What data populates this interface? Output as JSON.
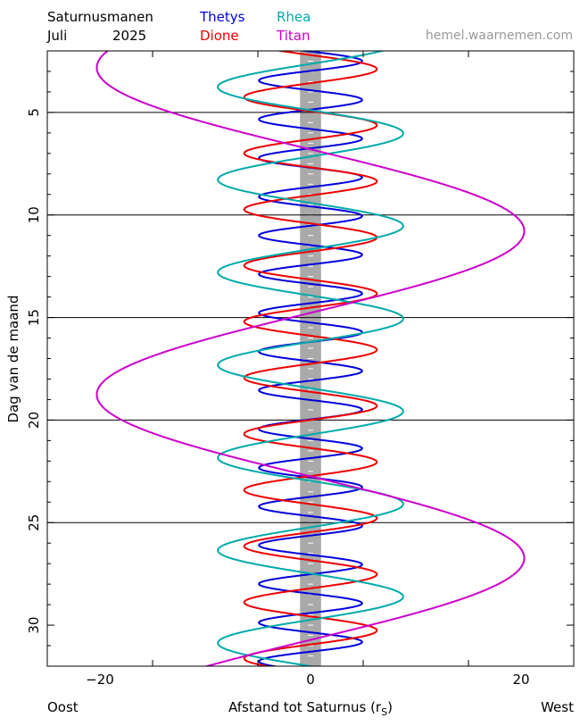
{
  "header": {
    "title": "Saturnusmanen",
    "month": "Juli",
    "year": "2025",
    "site": "hemel.waarnemen.com"
  },
  "chart_data": {
    "type": "line",
    "xlabel": "Afstand tot Saturnus",
    "xlabel_unit": "(r",
    "xlabel_sub": "S",
    "xlabel_close": ")",
    "ylabel": "Dag van de maand",
    "left_label": "Oost",
    "right_label": "West",
    "xlim": [
      -25,
      25
    ],
    "ylim": [
      2,
      32
    ],
    "y_inverted": true,
    "x_ticks": [
      -20,
      0,
      20
    ],
    "x_ticklabels": [
      "−20",
      "0",
      "20"
    ],
    "y_ticks": [
      5,
      10,
      15,
      20,
      25,
      30
    ],
    "y_ticklabels": [
      "5",
      "10",
      "15",
      "20",
      "25",
      "30"
    ],
    "grid_days": [
      5,
      10,
      15,
      20,
      25
    ],
    "planet_half_width": 1,
    "series": [
      {
        "name": "Thetys",
        "color": "#0000dd",
        "amplitude": 4.9,
        "period_days": 1.888,
        "phase_day": 2.03
      },
      {
        "name": "Dione",
        "color": "#ee0000",
        "amplitude": 6.3,
        "period_days": 2.737,
        "phase_day": 4.94
      },
      {
        "name": "Rhea",
        "color": "#00aaaa",
        "amplitude": 8.8,
        "period_days": 4.518,
        "phase_day": 9.41
      },
      {
        "name": "Titan",
        "color": "#cc00cc",
        "amplitude": 20.3,
        "period_days": 15.945,
        "phase_day": 6.8
      }
    ]
  }
}
